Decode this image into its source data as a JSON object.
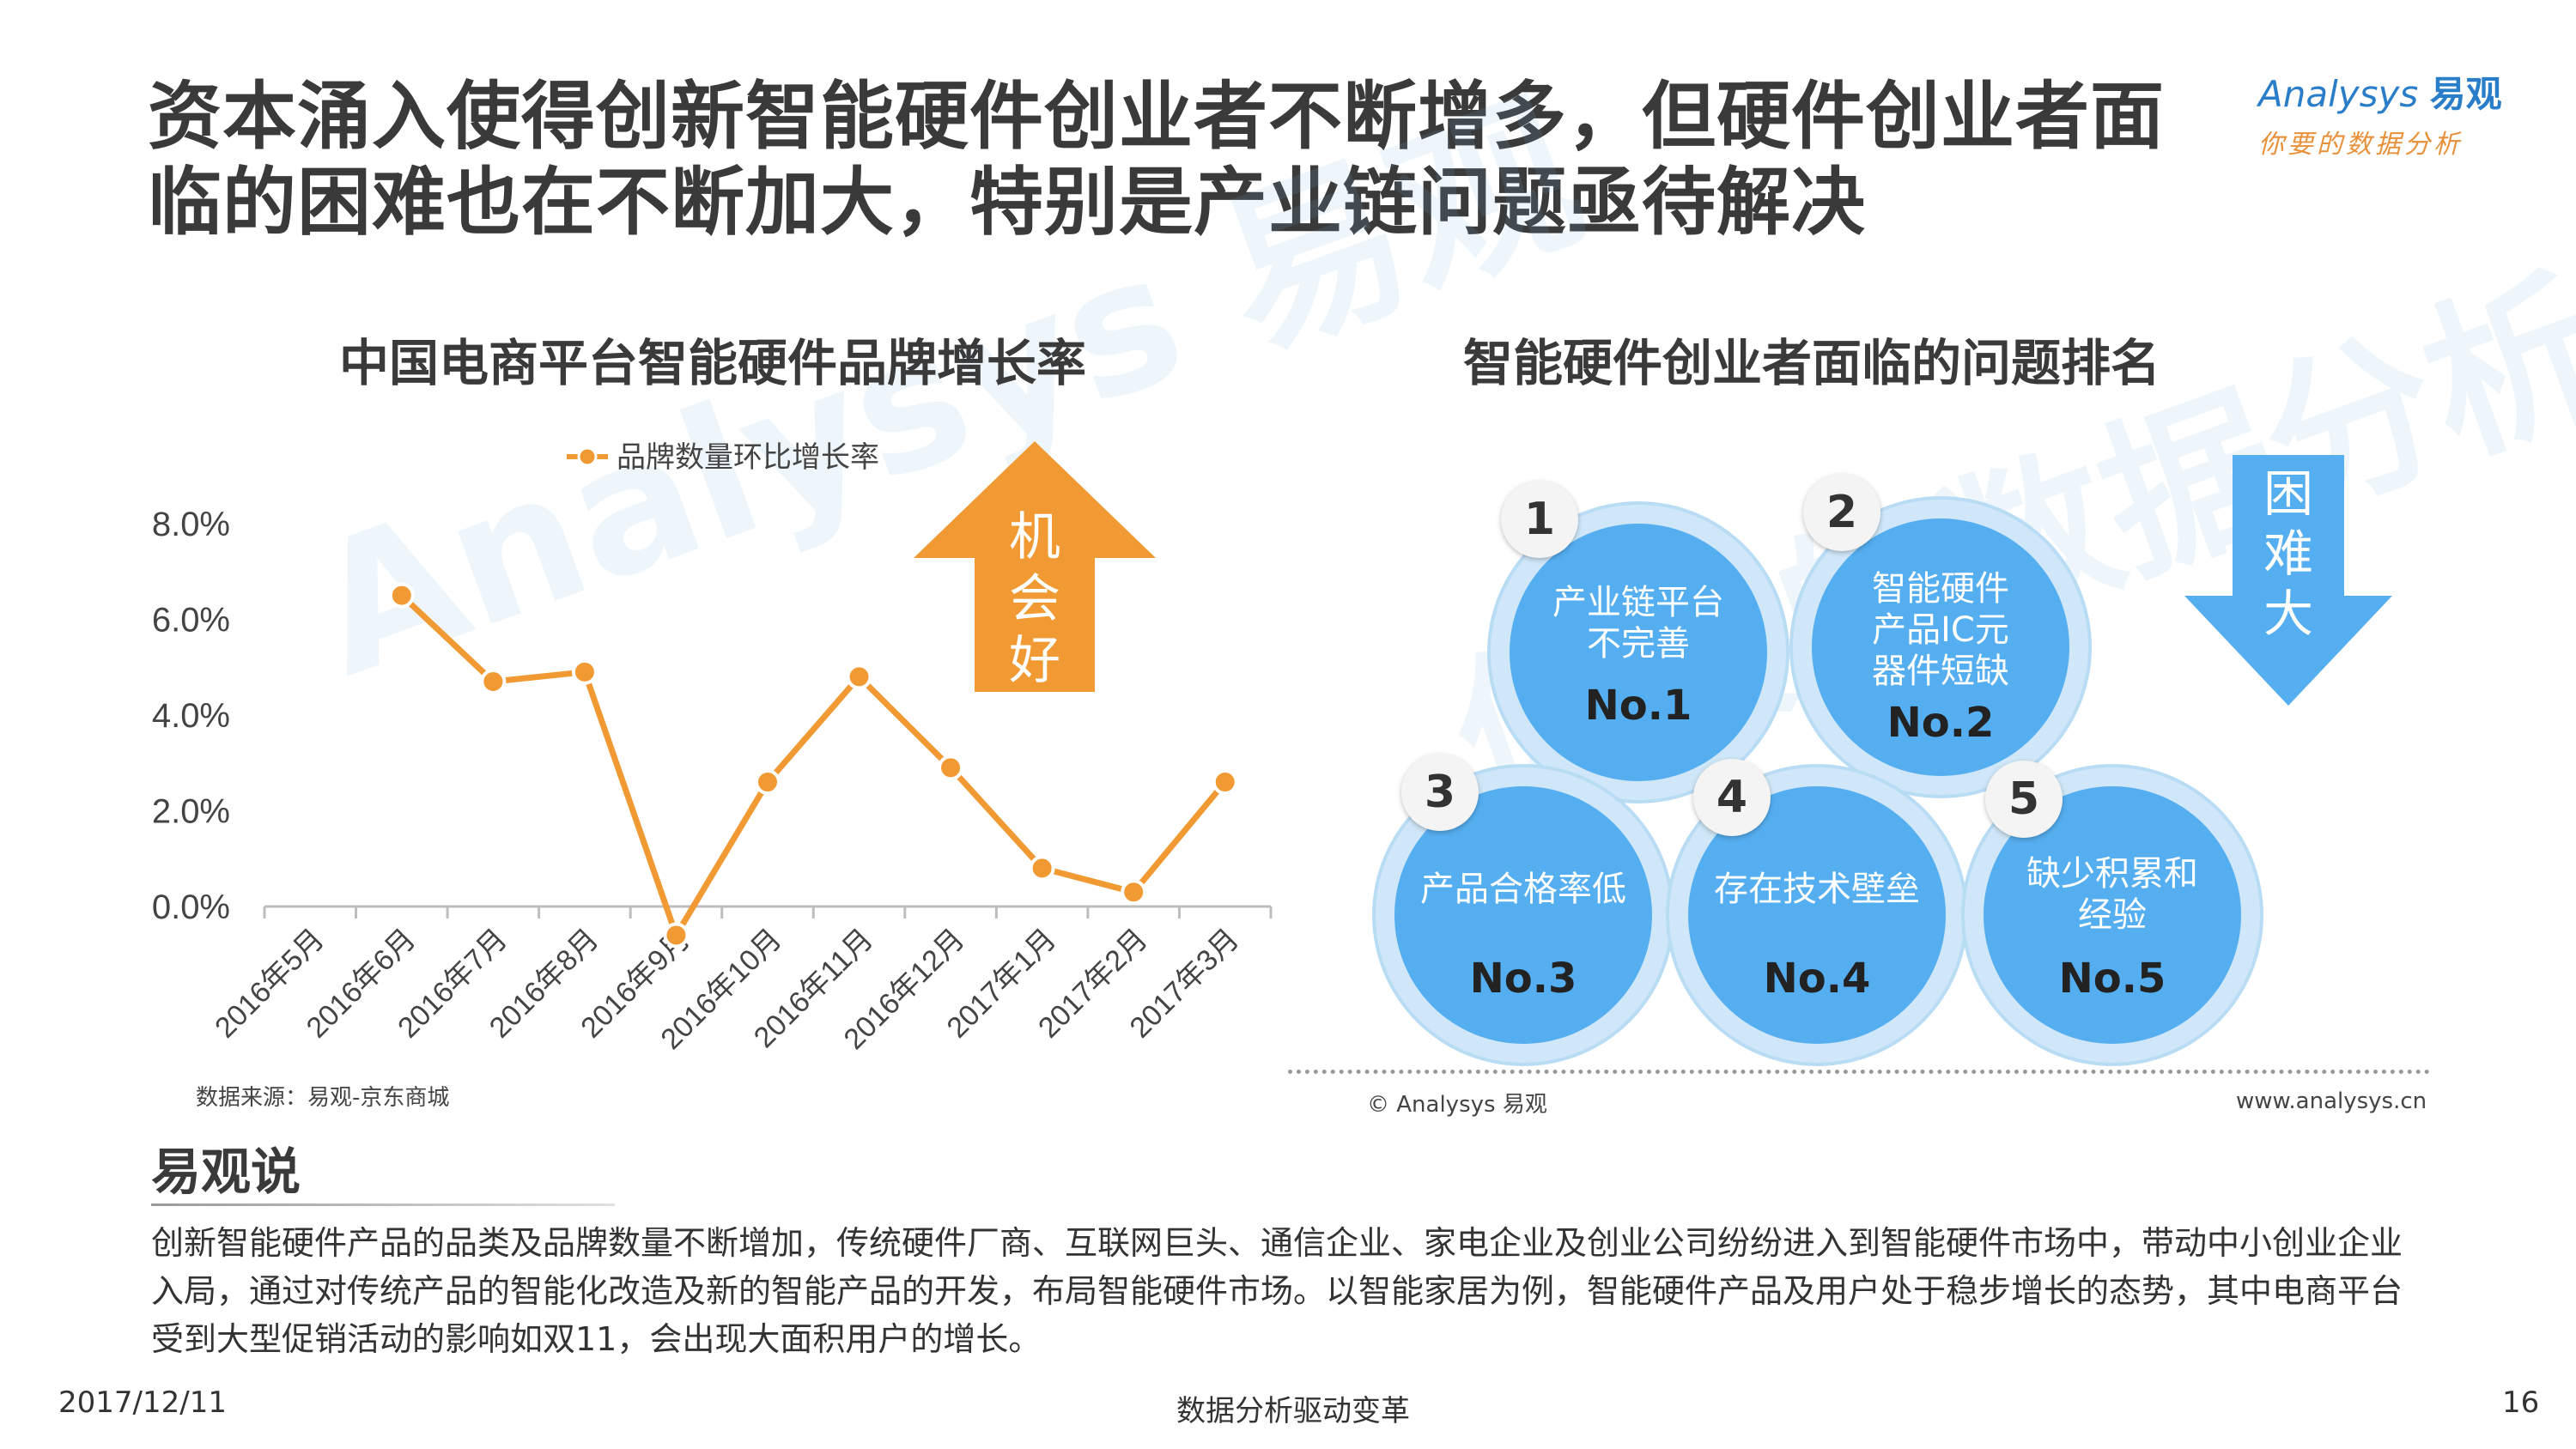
{
  "title": "资本涌入使得创新智能硬件创业者不断增多，但硬件创业者面临的困难也在不断加大，特别是产业链问题亟待解决",
  "logo": {
    "brand": "Analysys",
    "brand_cn": "易观",
    "tagline": "你要的数据分析"
  },
  "watermark": {
    "text": "Analysys 易观",
    "tagline": "你要的数据分析"
  },
  "left": {
    "section_title": "中国电商平台智能硬件品牌增长率",
    "arrow_text": [
      "机",
      "会",
      "好"
    ],
    "source": "数据来源：易观-京东商城"
  },
  "chart_data": {
    "type": "line",
    "title": "中国电商平台智能硬件品牌增长率",
    "categories": [
      "2016年5月",
      "2016年6月",
      "2016年7月",
      "2016年8月",
      "2016年9月",
      "2016年10月",
      "2016年11月",
      "2016年12月",
      "2017年1月",
      "2017年2月",
      "2017年3月"
    ],
    "series": [
      {
        "name": "品牌数量环比增长率",
        "values": [
          null,
          6.5,
          4.7,
          4.9,
          -0.6,
          2.6,
          4.8,
          2.9,
          0.8,
          0.3,
          2.6
        ],
        "color": "#f19a33"
      }
    ],
    "yticks": [
      "8.0%",
      "6.0%",
      "4.0%",
      "2.0%",
      "0.0%"
    ],
    "ylim": [
      -1.0,
      8.0
    ],
    "legend": "top"
  },
  "right": {
    "section_title": "智能硬件创业者面临的问题排名",
    "arrow_text": [
      "困",
      "难",
      "大"
    ],
    "problems": [
      {
        "num": "1",
        "text": "产业链平台不完善",
        "lines": [
          "产业链平台",
          "不完善"
        ],
        "rank": "No.1"
      },
      {
        "num": "2",
        "text": "智能硬件产品IC元器件短缺",
        "lines": [
          "智能硬件",
          "产品IC元",
          "器件短缺"
        ],
        "rank": "No.2"
      },
      {
        "num": "3",
        "text": "产品合格率低",
        "lines": [
          "产品合格率低"
        ],
        "rank": "No.3"
      },
      {
        "num": "4",
        "text": "存在技术壁垒",
        "lines": [
          "存在技术壁垒"
        ],
        "rank": "No.4"
      },
      {
        "num": "5",
        "text": "缺少积累和经验",
        "lines": [
          "缺少积累和",
          "经验"
        ],
        "rank": "No.5"
      }
    ],
    "copyright": "© Analysys 易观",
    "website": "www.analysys.cn"
  },
  "say": {
    "title": "易观说",
    "body": "创新智能硬件产品的品类及品牌数量不断增加，传统硬件厂商、互联网巨头、通信企业、家电企业及创业公司纷纷进入到智能硬件市场中，带动中小创业企业入局，通过对传统产品的智能化改造及新的智能产品的开发，布局智能硬件市场。以智能家居为例，智能硬件产品及用户处于稳步增长的态势，其中电商平台受到大型促销活动的影响如双11，会出现大面积用户的增长。"
  },
  "footer": {
    "date": "2017/12/11",
    "center": "数据分析驱动变革",
    "page": "16"
  },
  "colors": {
    "accent_orange": "#f19a33",
    "circle_blue": "#55aef0",
    "halo_blue": "#cfe7f8"
  }
}
